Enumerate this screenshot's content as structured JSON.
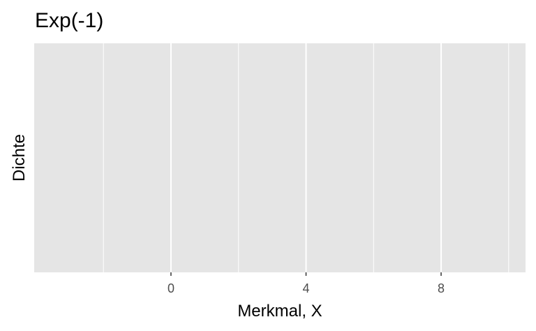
{
  "chart_data": {
    "type": "line",
    "title": "Exp(-1)",
    "xlabel": "Merkmal, X",
    "ylabel": "Dichte",
    "xlim": [
      -4.05,
      10.5
    ],
    "x_ticks": [
      0,
      4,
      8
    ],
    "x_minor_ticks": [
      -2,
      2,
      6,
      10
    ],
    "y_ticks": [],
    "series": [],
    "grid": true,
    "legend": "none",
    "colors": {
      "panel_background": "#e5e5e5",
      "grid_line": "#ffffff",
      "tick_text": "#4d4d4d",
      "tick_mark": "#333333",
      "text": "#000000"
    }
  }
}
